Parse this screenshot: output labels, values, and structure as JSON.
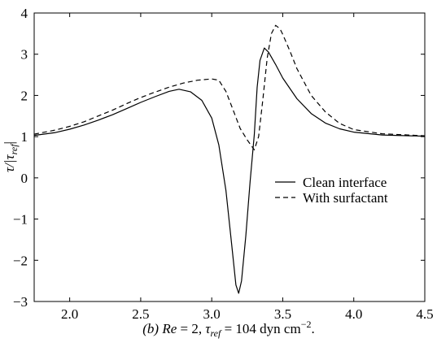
{
  "chart_data": {
    "type": "line",
    "title": "",
    "xlabel": "",
    "ylabel": "τ/|τ_ref|",
    "ylabel_parts": {
      "main": "τ/|τ",
      "sub": "ref",
      "end": "|"
    },
    "xlim": [
      1.75,
      4.5
    ],
    "ylim": [
      -3,
      4
    ],
    "x_ticks": [
      "2.0",
      "2.5",
      "3.0",
      "3.5",
      "4.0",
      "4.5"
    ],
    "y_ticks": [
      "−3",
      "−2",
      "−1",
      "0",
      "1",
      "2",
      "3",
      "4"
    ],
    "grid": false,
    "legend_position": "center-right",
    "series": [
      {
        "name": "Clean interface",
        "style": "solid",
        "color": "#000000",
        "points": [
          [
            1.75,
            1.03
          ],
          [
            1.9,
            1.1
          ],
          [
            2.0,
            1.18
          ],
          [
            2.1,
            1.28
          ],
          [
            2.2,
            1.4
          ],
          [
            2.3,
            1.53
          ],
          [
            2.4,
            1.68
          ],
          [
            2.5,
            1.83
          ],
          [
            2.6,
            1.97
          ],
          [
            2.7,
            2.1
          ],
          [
            2.77,
            2.15
          ],
          [
            2.85,
            2.09
          ],
          [
            2.93,
            1.88
          ],
          [
            3.0,
            1.45
          ],
          [
            3.05,
            0.8
          ],
          [
            3.1,
            -0.3
          ],
          [
            3.14,
            -1.6
          ],
          [
            3.17,
            -2.6
          ],
          [
            3.19,
            -2.8
          ],
          [
            3.21,
            -2.5
          ],
          [
            3.24,
            -1.4
          ],
          [
            3.27,
            -0.1
          ],
          [
            3.3,
            1.05
          ],
          [
            3.32,
            2.2
          ],
          [
            3.34,
            2.85
          ],
          [
            3.37,
            3.15
          ],
          [
            3.4,
            3.05
          ],
          [
            3.45,
            2.75
          ],
          [
            3.5,
            2.42
          ],
          [
            3.6,
            1.92
          ],
          [
            3.7,
            1.56
          ],
          [
            3.8,
            1.33
          ],
          [
            3.9,
            1.19
          ],
          [
            4.0,
            1.11
          ],
          [
            4.2,
            1.04
          ],
          [
            4.5,
            1.01
          ]
        ]
      },
      {
        "name": "With surfactant",
        "style": "dashed",
        "color": "#000000",
        "points": [
          [
            1.75,
            1.06
          ],
          [
            1.9,
            1.16
          ],
          [
            2.0,
            1.25
          ],
          [
            2.1,
            1.36
          ],
          [
            2.2,
            1.5
          ],
          [
            2.3,
            1.64
          ],
          [
            2.4,
            1.8
          ],
          [
            2.5,
            1.95
          ],
          [
            2.6,
            2.08
          ],
          [
            2.7,
            2.2
          ],
          [
            2.8,
            2.3
          ],
          [
            2.9,
            2.37
          ],
          [
            3.0,
            2.4
          ],
          [
            3.05,
            2.37
          ],
          [
            3.1,
            2.1
          ],
          [
            3.15,
            1.65
          ],
          [
            3.2,
            1.2
          ],
          [
            3.25,
            0.92
          ],
          [
            3.3,
            0.68
          ],
          [
            3.33,
            1.0
          ],
          [
            3.36,
            1.9
          ],
          [
            3.39,
            2.9
          ],
          [
            3.42,
            3.5
          ],
          [
            3.45,
            3.7
          ],
          [
            3.48,
            3.62
          ],
          [
            3.5,
            3.48
          ],
          [
            3.55,
            3.08
          ],
          [
            3.6,
            2.65
          ],
          [
            3.7,
            2.0
          ],
          [
            3.8,
            1.6
          ],
          [
            3.9,
            1.32
          ],
          [
            4.0,
            1.17
          ],
          [
            4.2,
            1.07
          ],
          [
            4.5,
            1.02
          ]
        ]
      }
    ],
    "caption": {
      "label": "(b)",
      "re_symbol": "Re",
      "re_value": " = 2, ",
      "tau_symbol": "τ",
      "tau_sub": "ref",
      "tau_value": " = 104 dyn cm",
      "exponent": "−2",
      "end": "."
    }
  }
}
